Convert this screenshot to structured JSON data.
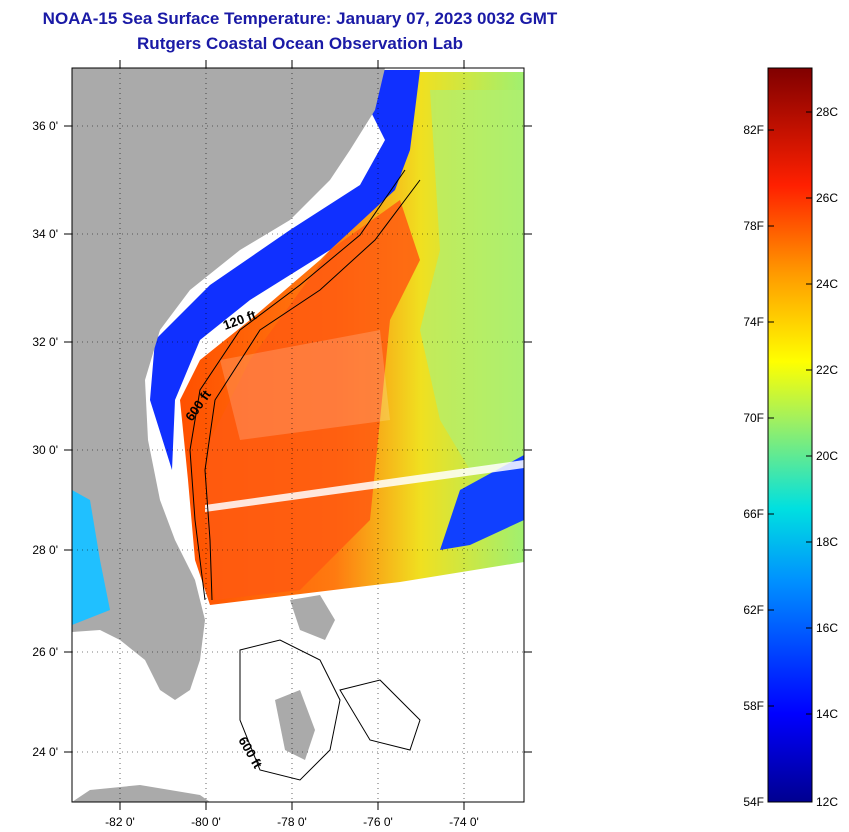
{
  "header": {
    "title": "NOAA-15 Sea Surface Temperature:  January 07, 2023 0032 GMT",
    "subtitle": "Rutgers Coastal Ocean Observation Lab"
  },
  "map": {
    "lon_labels": [
      "-82 0'",
      "-80 0'",
      "-78 0'",
      "-76 0'",
      "-74 0'"
    ],
    "lat_labels": [
      "36 0'",
      "34 0'",
      "32 0'",
      "30 0'",
      "28 0'",
      "26 0'",
      "24 0'"
    ],
    "isobath_labels": [
      "120 ft",
      "600 ft",
      "600 ft"
    ],
    "land_color": "#aaaaaa",
    "nodata_color": "#ffffff"
  },
  "colorbar": {
    "fahrenheit_labels": [
      "82F",
      "78F",
      "74F",
      "70F",
      "66F",
      "62F",
      "58F",
      "54F"
    ],
    "celsius_labels": [
      "28C",
      "26C",
      "24C",
      "22C",
      "20C",
      "18C",
      "16C",
      "14C",
      "12C"
    ],
    "min_c": 12,
    "max_c": 29,
    "colors": [
      "#000080",
      "#0000ff",
      "#0080ff",
      "#00ffff",
      "#80ff80",
      "#ffff00",
      "#ff8000",
      "#ff0000",
      "#800000"
    ]
  }
}
